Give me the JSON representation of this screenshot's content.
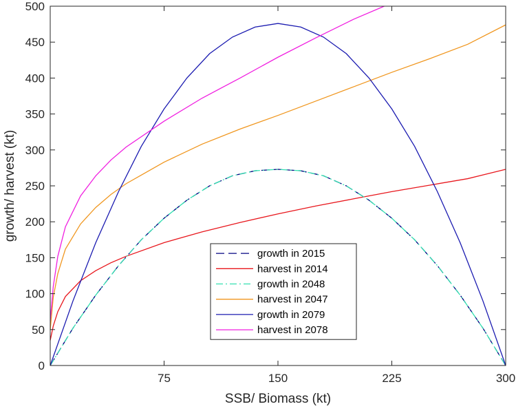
{
  "chart_data": {
    "type": "line",
    "xlabel": "SSB/ Biomass (kt)",
    "ylabel": "growth/ harvest (kt)",
    "xlim": [
      0,
      300
    ],
    "ylim": [
      0,
      500
    ],
    "xticks": [
      75,
      150,
      225,
      300
    ],
    "yticks": [
      0,
      50,
      100,
      150,
      200,
      250,
      300,
      350,
      400,
      450,
      500
    ],
    "grid": false,
    "legend_position": "bottom-center",
    "series": [
      {
        "name": "growth in 2015",
        "color": "#000080",
        "dash": "dashed",
        "x": [
          0,
          15,
          30,
          45,
          60,
          75,
          90,
          105,
          120,
          135,
          150,
          165,
          180,
          195,
          210,
          225,
          240,
          255,
          270,
          285,
          300
        ],
        "y": [
          0,
          52,
          98,
          139,
          175,
          205,
          230,
          250,
          264,
          271,
          273,
          271,
          264,
          250,
          230,
          205,
          175,
          139,
          98,
          52,
          0
        ]
      },
      {
        "name": "harvest in 2014",
        "color": "#e8161c",
        "dash": "solid",
        "x": [
          0,
          2,
          5,
          10,
          20,
          30,
          40,
          50,
          75,
          100,
          125,
          150,
          175,
          200,
          225,
          250,
          275,
          300
        ],
        "y": [
          35,
          55,
          75,
          96,
          118,
          132,
          143,
          152,
          171,
          186,
          199,
          211,
          222,
          232,
          242,
          251,
          260,
          273
        ]
      },
      {
        "name": "growth in 2048",
        "color": "#33e0b0",
        "dash": "dashdot",
        "x": [
          0,
          15,
          30,
          45,
          60,
          75,
          90,
          105,
          120,
          135,
          150,
          165,
          180,
          195,
          210,
          225,
          240,
          255,
          270,
          285,
          300
        ],
        "y": [
          0,
          52,
          98,
          139,
          175,
          205,
          230,
          250,
          264,
          271,
          273,
          271,
          264,
          250,
          230,
          205,
          175,
          139,
          98,
          52,
          0
        ]
      },
      {
        "name": "harvest in 2047",
        "color": "#f0961e",
        "dash": "solid",
        "x": [
          0,
          2,
          5,
          10,
          20,
          30,
          40,
          50,
          75,
          100,
          125,
          150,
          175,
          200,
          225,
          250,
          275,
          300
        ],
        "y": [
          50,
          95,
          128,
          162,
          197,
          220,
          238,
          253,
          283,
          308,
          329,
          348,
          368,
          388,
          408,
          427,
          447,
          474
        ]
      },
      {
        "name": "growth in 2079",
        "color": "#1a1ab0",
        "dash": "solid",
        "x": [
          0,
          15,
          30,
          45,
          60,
          75,
          90,
          105,
          120,
          135,
          150,
          165,
          180,
          195,
          210,
          225,
          240,
          255,
          270,
          285,
          300
        ],
        "y": [
          0,
          90,
          171,
          242,
          305,
          357,
          400,
          434,
          457,
          471,
          476,
          471,
          457,
          434,
          400,
          357,
          305,
          242,
          171,
          90,
          0
        ]
      },
      {
        "name": "harvest in 2078",
        "color": "#f01ee0",
        "dash": "solid",
        "x": [
          0,
          2,
          5,
          10,
          20,
          30,
          40,
          50,
          75,
          100,
          125,
          150,
          175,
          200,
          220
        ],
        "y": [
          62,
          110,
          152,
          193,
          236,
          264,
          286,
          304,
          340,
          372,
          400,
          429,
          456,
          482,
          500
        ]
      }
    ]
  }
}
